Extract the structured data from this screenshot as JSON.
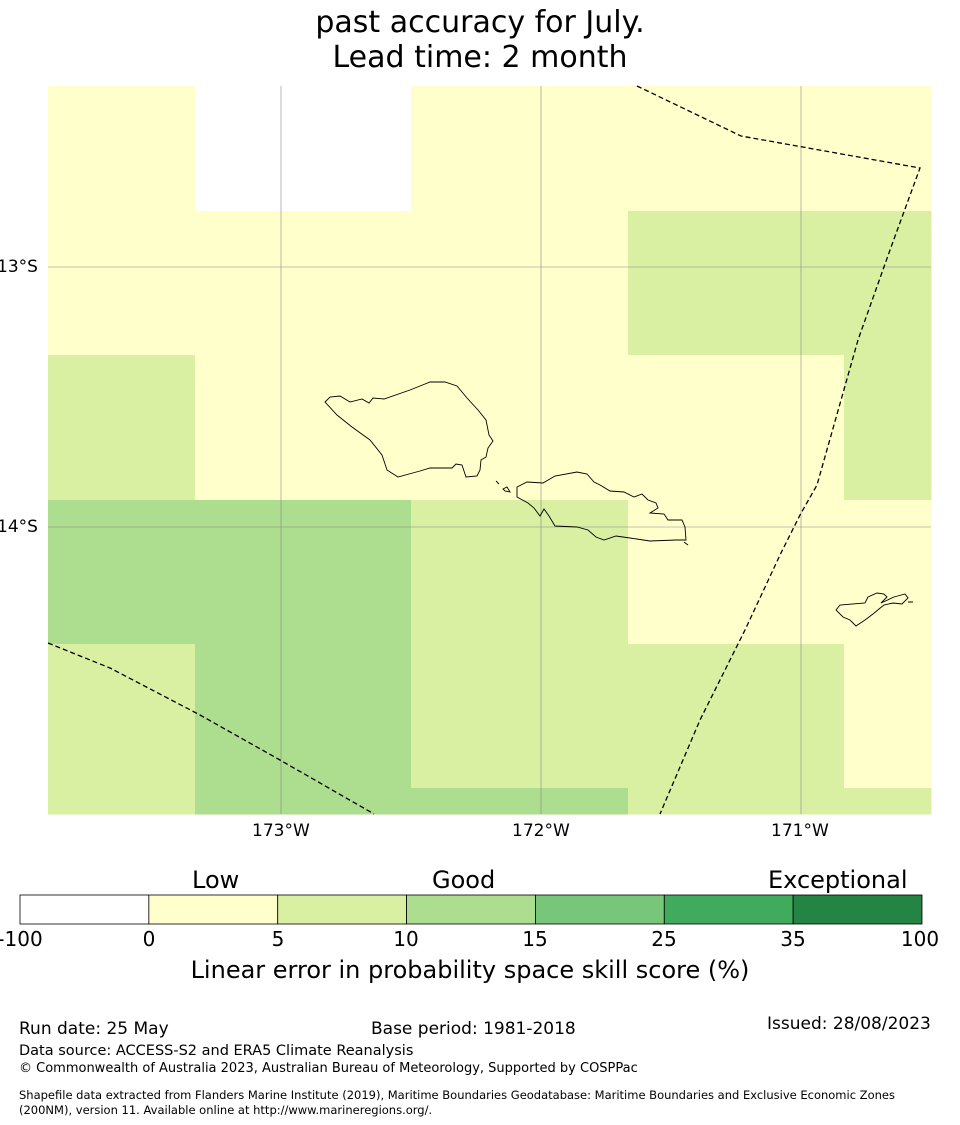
{
  "title_lines": [
    "past accuracy for July.",
    "Lead time: 2 month"
  ],
  "map": {
    "lon_ticks": [
      "173°W",
      "172°W",
      "171°W"
    ],
    "lat_ticks": [
      "13°S",
      "14°S"
    ],
    "cell_classes": [
      [
        1,
        0,
        1,
        1,
        1
      ],
      [
        1,
        1,
        1,
        2,
        2
      ],
      [
        2,
        1,
        1,
        1,
        2
      ],
      [
        3,
        3,
        2,
        1,
        1
      ],
      [
        2,
        3,
        2,
        2,
        1
      ],
      [
        2,
        3,
        3,
        2,
        2
      ]
    ]
  },
  "colorbar": {
    "categories": [
      "Low",
      "Good",
      "Exceptional"
    ],
    "boundaries": [
      "-100",
      "0",
      "5",
      "10",
      "15",
      "25",
      "35",
      "100"
    ],
    "colors": [
      "#ffffff",
      "#ffffcc",
      "#d9f0a3",
      "#addd8e",
      "#78c679",
      "#41ab5d",
      "#238443"
    ],
    "label": "Linear error in probability space skill score (%)"
  },
  "footer": {
    "run_date": "Run date: 25 May",
    "base_period": "Base period: 1981-2018",
    "issued": "Issued: 28/08/2023",
    "data_source": "Data source: ACCESS-S2 and ERA5 Climate Reanalysis",
    "copyright": "© Commonwealth of Australia 2023, Australian Bureau of Meteorology, Supported by COSPPac",
    "shapefile_1": "Shapefile data extracted from Flanders Marine Institute (2019), Maritime Boundaries Geodatabase: Maritime Boundaries and Exclusive Economic Zones",
    "shapefile_2": "(200NM), version 11. Available online at http://www.marineregions.org/."
  }
}
